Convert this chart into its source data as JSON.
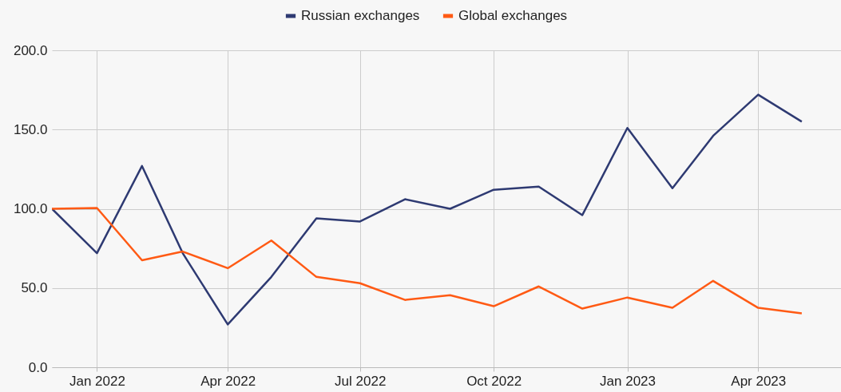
{
  "chart_data": {
    "type": "line",
    "x": [
      "2021-12",
      "2022-01",
      "2022-02",
      "2022-03",
      "2022-04",
      "2022-05",
      "2022-06",
      "2022-07",
      "2022-08",
      "2022-09",
      "2022-10",
      "2022-11",
      "2022-12",
      "2023-01",
      "2023-02",
      "2023-03",
      "2023-04",
      "2023-05"
    ],
    "series": [
      {
        "name": "Russian exchanges",
        "color": "#2e3a72",
        "values": [
          100,
          72,
          127,
          72,
          27,
          57,
          94,
          92,
          106,
          100,
          112,
          114,
          96,
          151,
          113,
          146,
          172,
          155
        ]
      },
      {
        "name": "Global exchanges",
        "color": "#ff5a14",
        "values": [
          100,
          100.5,
          67.5,
          73,
          62.5,
          80,
          57,
          53,
          42.5,
          45.5,
          38.5,
          51,
          37,
          44,
          37.5,
          54.5,
          37.5,
          34
        ]
      }
    ],
    "xlim": [
      "2021-12",
      "2023-05-28"
    ],
    "xticks": [
      {
        "value": "2022-01",
        "label": "Jan 2022"
      },
      {
        "value": "2022-04",
        "label": "Apr 2022"
      },
      {
        "value": "2022-07",
        "label": "Jul 2022"
      },
      {
        "value": "2022-10",
        "label": "Oct 2022"
      },
      {
        "value": "2023-01",
        "label": "Jan 2023"
      },
      {
        "value": "2023-04",
        "label": "Apr 2023"
      }
    ],
    "ylim": [
      0,
      200
    ],
    "yticks": [
      {
        "value": 0,
        "label": "0.0"
      },
      {
        "value": 50,
        "label": "50.0"
      },
      {
        "value": 100,
        "label": "100.0"
      },
      {
        "value": 150,
        "label": "150.0"
      },
      {
        "value": 200,
        "label": "200.0"
      }
    ],
    "grid": true,
    "legend": "top",
    "marker": "none",
    "line_style": "solid"
  }
}
